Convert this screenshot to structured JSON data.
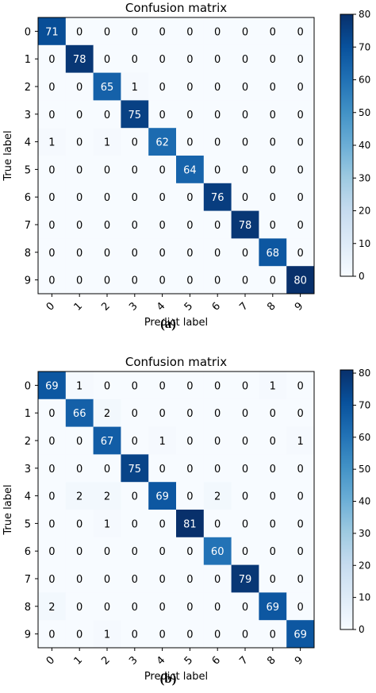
{
  "chart_data": [
    {
      "type": "heatmap",
      "title": "Confusion matrix",
      "xlabel": "Predict label",
      "ylabel": "True label",
      "x_tick_labels": [
        "0",
        "1",
        "2",
        "3",
        "4",
        "5",
        "6",
        "7",
        "8",
        "9"
      ],
      "y_tick_labels": [
        "0",
        "1",
        "2",
        "3",
        "4",
        "5",
        "6",
        "7",
        "8",
        "9"
      ],
      "colorbar": {
        "min": 0,
        "max": 80,
        "ticks": [
          0,
          10,
          20,
          30,
          40,
          50,
          60,
          70,
          80
        ],
        "colormap": "Blues"
      },
      "panel_label": "(a)",
      "matrix": [
        [
          71,
          0,
          0,
          0,
          0,
          0,
          0,
          0,
          0,
          0
        ],
        [
          0,
          78,
          0,
          0,
          0,
          0,
          0,
          0,
          0,
          0
        ],
        [
          0,
          0,
          65,
          1,
          0,
          0,
          0,
          0,
          0,
          0
        ],
        [
          0,
          0,
          0,
          75,
          0,
          0,
          0,
          0,
          0,
          0
        ],
        [
          1,
          0,
          1,
          0,
          62,
          0,
          0,
          0,
          0,
          0
        ],
        [
          0,
          0,
          0,
          0,
          0,
          64,
          0,
          0,
          0,
          0
        ],
        [
          0,
          0,
          0,
          0,
          0,
          0,
          76,
          0,
          0,
          0
        ],
        [
          0,
          0,
          0,
          0,
          0,
          0,
          0,
          78,
          0,
          0
        ],
        [
          0,
          0,
          0,
          0,
          0,
          0,
          0,
          0,
          68,
          0
        ],
        [
          0,
          0,
          0,
          0,
          0,
          0,
          0,
          0,
          0,
          80
        ]
      ]
    },
    {
      "type": "heatmap",
      "title": "Confusion matrix",
      "xlabel": "Predict label",
      "ylabel": "True label",
      "x_tick_labels": [
        "0",
        "1",
        "2",
        "3",
        "4",
        "5",
        "6",
        "7",
        "8",
        "9"
      ],
      "y_tick_labels": [
        "0",
        "1",
        "2",
        "3",
        "4",
        "5",
        "6",
        "7",
        "8",
        "9"
      ],
      "colorbar": {
        "min": 0,
        "max": 81,
        "ticks": [
          0,
          10,
          20,
          30,
          40,
          50,
          60,
          70,
          80
        ],
        "colormap": "Blues"
      },
      "panel_label": "(b)",
      "matrix": [
        [
          69,
          1,
          0,
          0,
          0,
          0,
          0,
          0,
          1,
          0
        ],
        [
          0,
          66,
          2,
          0,
          0,
          0,
          0,
          0,
          0,
          0
        ],
        [
          0,
          0,
          67,
          0,
          1,
          0,
          0,
          0,
          0,
          1
        ],
        [
          0,
          0,
          0,
          75,
          0,
          0,
          0,
          0,
          0,
          0
        ],
        [
          0,
          2,
          2,
          0,
          69,
          0,
          2,
          0,
          0,
          0
        ],
        [
          0,
          0,
          1,
          0,
          0,
          81,
          0,
          0,
          0,
          0
        ],
        [
          0,
          0,
          0,
          0,
          0,
          0,
          60,
          0,
          0,
          0
        ],
        [
          0,
          0,
          0,
          0,
          0,
          0,
          0,
          79,
          0,
          0
        ],
        [
          2,
          0,
          0,
          0,
          0,
          0,
          0,
          0,
          69,
          0
        ],
        [
          0,
          0,
          1,
          0,
          0,
          0,
          0,
          0,
          0,
          69
        ]
      ]
    }
  ]
}
